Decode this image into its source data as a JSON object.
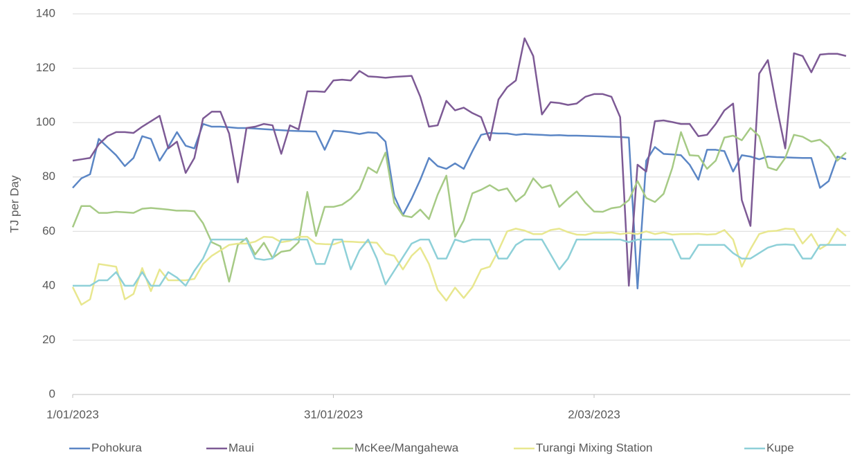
{
  "chart_data": {
    "type": "line",
    "y_label": "TJ per Day",
    "categories": [
      "1/01/2023",
      null,
      null,
      null,
      null,
      null,
      null,
      null,
      null,
      null,
      null,
      null,
      null,
      null,
      null,
      null,
      null,
      null,
      null,
      null,
      null,
      null,
      null,
      null,
      null,
      null,
      null,
      null,
      null,
      null,
      "31/01/2023",
      null,
      null,
      null,
      null,
      null,
      null,
      null,
      null,
      null,
      null,
      null,
      null,
      null,
      null,
      null,
      null,
      null,
      null,
      null,
      null,
      null,
      null,
      null,
      null,
      null,
      null,
      null,
      null,
      null,
      "2/03/2023",
      null,
      null,
      null,
      null,
      null,
      null,
      null,
      null,
      null,
      null,
      null,
      null,
      null,
      null,
      null,
      null,
      null,
      null,
      null,
      null,
      null,
      null,
      null,
      null,
      null,
      null,
      null,
      null,
      null
    ],
    "ylim": [
      0,
      140
    ],
    "yticks": [
      0,
      20,
      40,
      60,
      80,
      100,
      120,
      140
    ],
    "grid": true,
    "legend": "bottom",
    "series": [
      {
        "name": "Pohokura",
        "color": "#5b86c5",
        "values": [
          76,
          79.5,
          81,
          94,
          91,
          88,
          84,
          87,
          95,
          94,
          86,
          91,
          96.5,
          91.5,
          90.5,
          99.5,
          98.5,
          98.5,
          98.3,
          98,
          98,
          97.8,
          97.6,
          97.4,
          97.2,
          97,
          96.9,
          96.8,
          96.7,
          90,
          97,
          96.8,
          96.4,
          95.8,
          96.4,
          96.2,
          93,
          73,
          66,
          72,
          79,
          87,
          84,
          83,
          85,
          83,
          89.5,
          95.5,
          96.2,
          96,
          96,
          95.5,
          95.8,
          95.6,
          95.5,
          95.3,
          95.4,
          95.2,
          95.2,
          95.1,
          95,
          94.9,
          94.8,
          94.7,
          94.5,
          39,
          86,
          91,
          88.5,
          88.3,
          88,
          84.5,
          79,
          90,
          90,
          89.5,
          82,
          88,
          87.5,
          86.5,
          87.5,
          87.3,
          87.2,
          87.1,
          87,
          87,
          76,
          78.5,
          87.5,
          86.5
        ]
      },
      {
        "name": "Maui",
        "color": "#7d5a95",
        "values": [
          86,
          86.5,
          87,
          92,
          95,
          96.5,
          96.5,
          96.2,
          98.5,
          100.5,
          102.5,
          90.5,
          93,
          81.5,
          87,
          101.5,
          104,
          104,
          96,
          78,
          98,
          98.5,
          99.5,
          99,
          88.5,
          99,
          97.5,
          111.5,
          111.5,
          111.3,
          115.5,
          115.8,
          115.5,
          119,
          117,
          116.8,
          116.5,
          116.8,
          117,
          117.2,
          109.5,
          98.5,
          99,
          108,
          104.5,
          105.5,
          103.5,
          102,
          93.5,
          108.5,
          113,
          115.5,
          131,
          124.5,
          103,
          107.5,
          107.2,
          106.5,
          107,
          109.5,
          110.5,
          110.5,
          109.5,
          102,
          40,
          84.5,
          82,
          100.5,
          100.8,
          100.2,
          99.5,
          99.5,
          95,
          95.5,
          99.5,
          104.5,
          107,
          71.5,
          62,
          118,
          123,
          106,
          90.5,
          125.5,
          124.5,
          118.5,
          125,
          125.3,
          125.3,
          124.5
        ]
      },
      {
        "name": "McKee/Mangahewa",
        "color": "#a6ca85",
        "values": [
          61.5,
          69.3,
          69.3,
          66.8,
          66.8,
          67.2,
          67,
          66.8,
          68.3,
          68.6,
          68.3,
          68,
          67.6,
          67.6,
          67.4,
          63,
          56,
          54.5,
          41.5,
          55,
          57.5,
          51.5,
          55.8,
          50.2,
          52.5,
          53,
          56,
          74.5,
          58.3,
          69,
          69,
          69.8,
          72,
          75.5,
          83.5,
          81.5,
          89,
          70.5,
          65.8,
          65.2,
          68,
          64.5,
          73.5,
          80.5,
          58,
          64,
          74,
          75.3,
          77,
          75,
          75.8,
          71,
          73.5,
          79.5,
          76,
          77,
          69,
          72,
          74.7,
          70.5,
          67.3,
          67.2,
          68.5,
          69,
          71.5,
          78.5,
          72.3,
          70.8,
          73.8,
          83.3,
          96.5,
          88,
          87.8,
          83,
          86,
          94.5,
          95.2,
          93.5,
          98,
          95,
          83.5,
          82.5,
          87,
          95.5,
          94.8,
          93,
          93.7,
          91,
          86,
          89
        ]
      },
      {
        "name": "Turangi Mixing Station",
        "color": "#e8e78f",
        "values": [
          39.5,
          33,
          35,
          48,
          47.5,
          47,
          35,
          37,
          46.5,
          38,
          46,
          42,
          42,
          42,
          42.5,
          48,
          51,
          53,
          55,
          55.5,
          55.5,
          56.2,
          58,
          57.8,
          56,
          56.5,
          58,
          58,
          55.5,
          55.3,
          55.2,
          56.3,
          56.2,
          56,
          56,
          55.8,
          51.8,
          51,
          46,
          51,
          54,
          48,
          38.5,
          34.5,
          39.3,
          35.5,
          39.5,
          46,
          47,
          53,
          60,
          61,
          60.3,
          59,
          59,
          60.5,
          61,
          59.7,
          58.8,
          58.7,
          59.5,
          59.4,
          59.6,
          59,
          59.4,
          59,
          60,
          59,
          59.6,
          58.8,
          59,
          59,
          59.1,
          58.8,
          59,
          60.5,
          57,
          47,
          53.5,
          59,
          60,
          60.2,
          61,
          60.8,
          55.5,
          59,
          53.5,
          55.5,
          61,
          58.3
        ]
      },
      {
        "name": "Kupe",
        "color": "#8ed0d8",
        "values": [
          40,
          40,
          40,
          42,
          42,
          45,
          40,
          40,
          45,
          40,
          40,
          45,
          43,
          40,
          45.5,
          50,
          57,
          57,
          57,
          57,
          57,
          50,
          49.5,
          50,
          57,
          57,
          57,
          57,
          48,
          48,
          57,
          57,
          46,
          53,
          57,
          50,
          40.5,
          45.5,
          50.5,
          55.5,
          57,
          57,
          50,
          50,
          57,
          56,
          57,
          57,
          57,
          50,
          50,
          55,
          57,
          57,
          57,
          51.5,
          46,
          50,
          57,
          57,
          57,
          57,
          57,
          57,
          56,
          57,
          57,
          57,
          57,
          57,
          50,
          50,
          55,
          55,
          55,
          55,
          52,
          50,
          50,
          52,
          54,
          55,
          55.2,
          55,
          50,
          50,
          55,
          55,
          55,
          55
        ]
      }
    ]
  }
}
